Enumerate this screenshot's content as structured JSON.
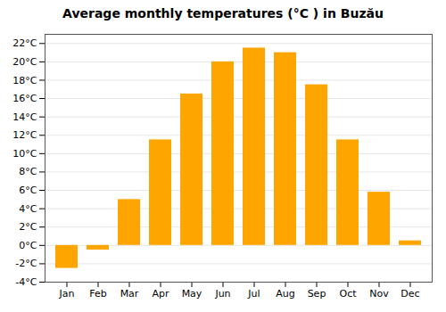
{
  "chart_data": {
    "type": "bar",
    "title": "Average monthly temperatures (°C ) in Buzău",
    "categories": [
      "Jan",
      "Feb",
      "Mar",
      "Apr",
      "May",
      "Jun",
      "Jul",
      "Aug",
      "Sep",
      "Oct",
      "Nov",
      "Dec"
    ],
    "values": [
      -2.5,
      -0.5,
      5.0,
      11.5,
      16.5,
      20.0,
      21.5,
      21.0,
      17.5,
      11.5,
      5.8,
      0.5
    ],
    "color": "#FFA500",
    "ylim": [
      -4,
      23
    ],
    "yticks": [
      {
        "value": -4,
        "label": "-4°C"
      },
      {
        "value": -2,
        "label": "-2°C"
      },
      {
        "value": 0,
        "label": "0°C"
      },
      {
        "value": 2,
        "label": "2°C"
      },
      {
        "value": 4,
        "label": "4°C"
      },
      {
        "value": 6,
        "label": "6°C"
      },
      {
        "value": 8,
        "label": "8°C"
      },
      {
        "value": 10,
        "label": "10°C"
      },
      {
        "value": 12,
        "label": "12°C"
      },
      {
        "value": 14,
        "label": "14°C"
      },
      {
        "value": 16,
        "label": "16°C"
      },
      {
        "value": 18,
        "label": "18°C"
      },
      {
        "value": 20,
        "label": "20°C"
      },
      {
        "value": 22,
        "label": "22°C"
      }
    ],
    "grid": true
  }
}
